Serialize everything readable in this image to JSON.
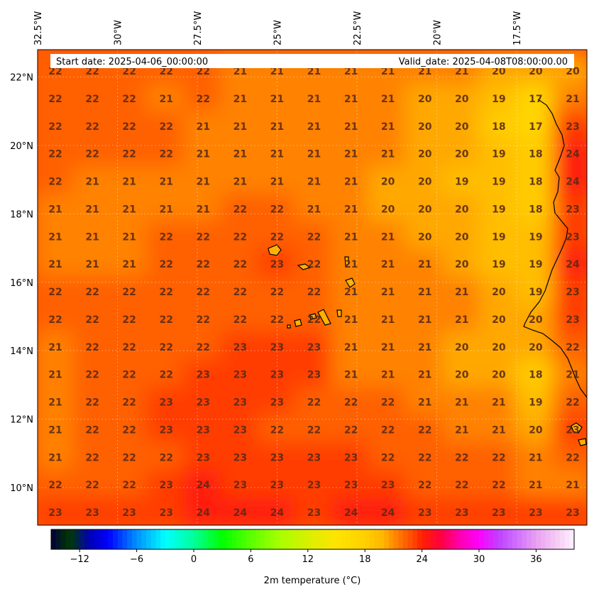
{
  "header": {
    "start_date": "Start date: 2025-04-06_00:00:00",
    "valid_date": "Valid_date: 2025-04-08T08:00:00.00"
  },
  "axes": {
    "lon_labels": [
      "32.5°W",
      "30°W",
      "27.5°W",
      "25°W",
      "22.5°W",
      "20°W",
      "17.5°W"
    ],
    "lon_values": [
      -32.5,
      -30,
      -27.5,
      -25,
      -22.5,
      -20,
      -17.5
    ],
    "lat_labels": [
      "22°N",
      "20°N",
      "18°N",
      "16°N",
      "14°N",
      "12°N",
      "10°N"
    ],
    "lat_values": [
      22,
      20,
      18,
      16,
      14,
      12,
      10
    ],
    "lon_range": [
      -32.5,
      -15.3
    ],
    "lat_range": [
      8.9,
      22.8
    ],
    "gridlines": true
  },
  "colorbar": {
    "ticks": [
      "−12",
      "−6",
      "0",
      "6",
      "12",
      "18",
      "24",
      "30",
      "36"
    ],
    "tick_values": [
      -12,
      -6,
      0,
      6,
      12,
      18,
      24,
      30,
      36
    ],
    "range": [
      -15,
      40
    ],
    "label": "2m temperature (°C)"
  },
  "chart_data": {
    "type": "heatmap",
    "variable": "2m temperature",
    "unit": "°C",
    "grid_values": [
      [
        22,
        22,
        22,
        22,
        22,
        21,
        21,
        21,
        21,
        21,
        21,
        21,
        20,
        20,
        20
      ],
      [
        22,
        22,
        22,
        21,
        22,
        21,
        21,
        21,
        21,
        21,
        20,
        20,
        19,
        17,
        21
      ],
      [
        22,
        22,
        22,
        22,
        21,
        21,
        21,
        21,
        21,
        21,
        20,
        20,
        18,
        17,
        23
      ],
      [
        22,
        22,
        22,
        22,
        21,
        21,
        21,
        21,
        21,
        21,
        20,
        20,
        19,
        18,
        24
      ],
      [
        22,
        21,
        21,
        21,
        21,
        21,
        21,
        21,
        21,
        20,
        20,
        19,
        19,
        18,
        24
      ],
      [
        21,
        21,
        21,
        21,
        21,
        22,
        22,
        21,
        21,
        20,
        20,
        20,
        19,
        18,
        23
      ],
      [
        21,
        21,
        21,
        22,
        22,
        22,
        22,
        22,
        21,
        21,
        20,
        20,
        19,
        19,
        23
      ],
      [
        21,
        21,
        21,
        22,
        22,
        22,
        23,
        22,
        21,
        21,
        21,
        20,
        19,
        19,
        24
      ],
      [
        22,
        22,
        22,
        22,
        22,
        22,
        22,
        22,
        21,
        21,
        21,
        21,
        20,
        19,
        23
      ],
      [
        22,
        22,
        22,
        22,
        22,
        22,
        22,
        22,
        21,
        21,
        21,
        21,
        20,
        20,
        23
      ],
      [
        21,
        22,
        22,
        22,
        22,
        23,
        23,
        23,
        21,
        21,
        21,
        20,
        20,
        20,
        22
      ],
      [
        21,
        22,
        22,
        22,
        23,
        23,
        23,
        23,
        21,
        21,
        21,
        20,
        20,
        18,
        21
      ],
      [
        21,
        22,
        22,
        23,
        23,
        23,
        23,
        22,
        22,
        22,
        21,
        21,
        21,
        19,
        22
      ],
      [
        21,
        22,
        22,
        23,
        23,
        23,
        22,
        22,
        22,
        22,
        22,
        21,
        21,
        20,
        23
      ],
      [
        21,
        22,
        22,
        22,
        23,
        23,
        23,
        23,
        23,
        22,
        22,
        22,
        22,
        21,
        22
      ],
      [
        22,
        22,
        22,
        23,
        24,
        23,
        23,
        23,
        23,
        23,
        22,
        22,
        22,
        21,
        21
      ],
      [
        23,
        23,
        23,
        23,
        24,
        24,
        24,
        23,
        24,
        24,
        23,
        23,
        23,
        23,
        23
      ]
    ]
  }
}
